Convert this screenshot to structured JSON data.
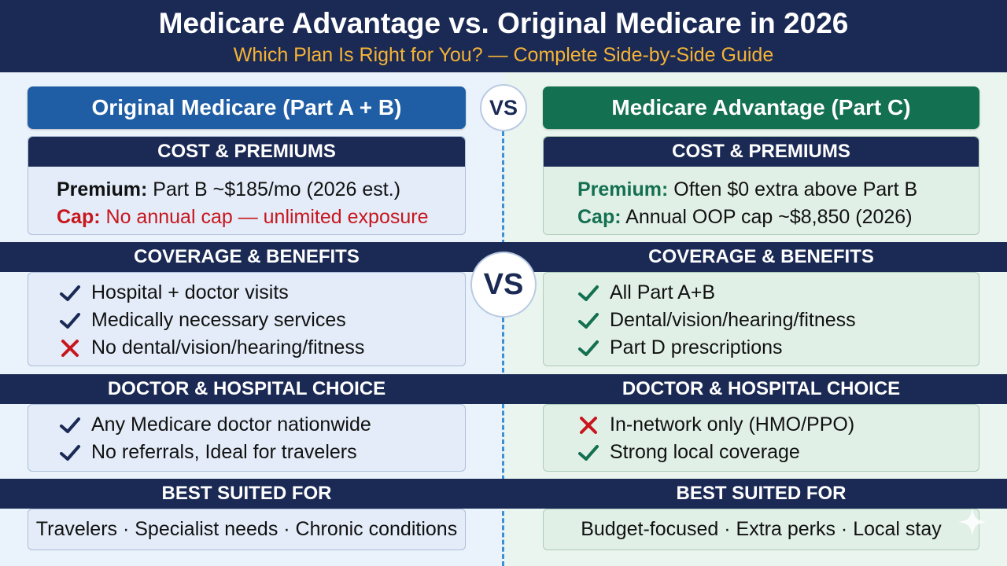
{
  "header": {
    "title": "Medicare Advantage vs. Original Medicare in 2026",
    "subtitle": "Which Plan Is Right for You? — Complete Side-by-Side Guide"
  },
  "vs": "VS",
  "left": {
    "column_title": "Original Medicare (Part A + B)",
    "cost": {
      "heading": "COST & PREMIUMS",
      "premium_label": "Premium:",
      "premium_value": "Part B ~$185/mo (2026 est.)",
      "cap_label": "Cap:",
      "cap_value": "No annual cap — unlimited exposure"
    },
    "coverage": {
      "heading": "COVERAGE & BENEFITS",
      "items": [
        {
          "icon": "check",
          "text": "Hospital + doctor visits"
        },
        {
          "icon": "check",
          "text": "Medically necessary services"
        },
        {
          "icon": "cross",
          "text": "No dental/vision/hearing/fitness"
        }
      ]
    },
    "choice": {
      "heading": "DOCTOR & HOSPITAL CHOICE",
      "items": [
        {
          "icon": "check",
          "text": "Any Medicare doctor nationwide"
        },
        {
          "icon": "check",
          "text": "No referrals, Ideal for travelers"
        }
      ]
    },
    "best": {
      "heading": "BEST SUITED FOR",
      "text": "Travelers · Specialist needs · Chronic conditions"
    }
  },
  "right": {
    "column_title": "Medicare Advantage (Part C)",
    "cost": {
      "heading": "COST & PREMIUMS",
      "premium_label": "Premium:",
      "premium_value": "Often $0 extra above Part B",
      "cap_label": "Cap:",
      "cap_value": "Annual OOP cap ~$8,850 (2026)"
    },
    "coverage": {
      "heading": "COVERAGE & BENEFITS",
      "items": [
        {
          "icon": "check",
          "text": "All Part A+B"
        },
        {
          "icon": "check",
          "text": "Dental/vision/hearing/fitness"
        },
        {
          "icon": "check",
          "text": "Part D prescriptions"
        }
      ]
    },
    "choice": {
      "heading": "DOCTOR & HOSPITAL CHOICE",
      "items": [
        {
          "icon": "cross",
          "text": "In-network only (HMO/PPO)"
        },
        {
          "icon": "check",
          "text": "Strong local coverage"
        }
      ]
    },
    "best": {
      "heading": "BEST SUITED FOR",
      "text": "Budget-focused · Extra perks · Local stay"
    }
  },
  "colors": {
    "navy": "#1b2a55",
    "blue": "#1f5ea4",
    "green": "#137050",
    "red": "#c8161d",
    "gold": "#f5b335"
  }
}
